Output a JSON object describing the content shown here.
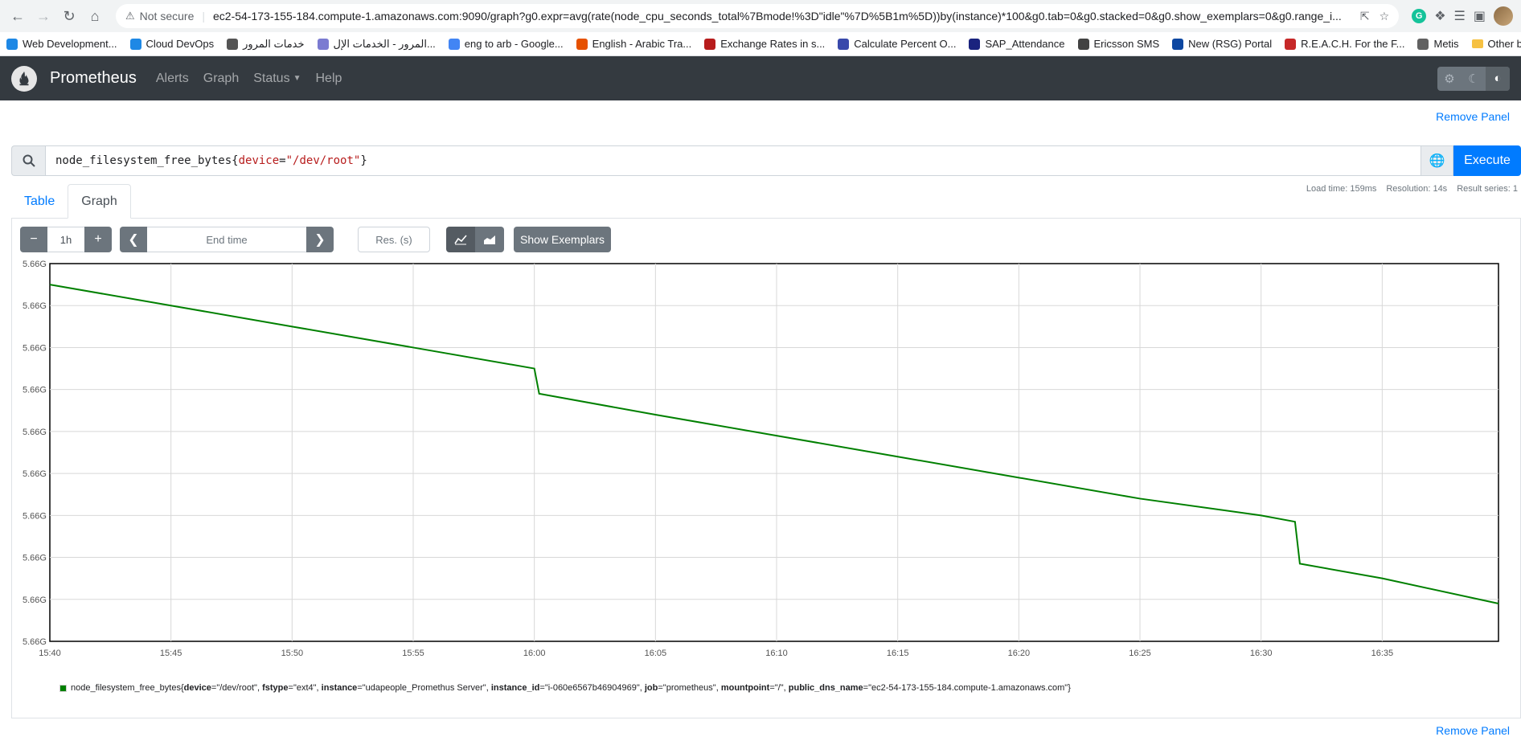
{
  "browser": {
    "security": "Not secure",
    "url": "ec2-54-173-155-184.compute-1.amazonaws.com:9090/graph?g0.expr=avg(rate(node_cpu_seconds_total%7Bmode!%3D\"idle\"%7D%5B1m%5D))by(instance)*100&g0.tab=0&g0.stacked=0&g0.show_exemplars=0&g0.range_i...",
    "bookmarks": [
      {
        "label": "Web Development...",
        "color": "#1e88e5"
      },
      {
        "label": "Cloud DevOps",
        "color": "#1e88e5"
      },
      {
        "label": "خدمات المرور",
        "color": "#555555"
      },
      {
        "label": "المرور - الخدمات الإل...",
        "color": "#7b7bd1"
      },
      {
        "label": "eng to arb - Google...",
        "color": "#4285f4"
      },
      {
        "label": "English - Arabic Tra...",
        "color": "#e65100"
      },
      {
        "label": "Exchange Rates in s...",
        "color": "#b71c1c"
      },
      {
        "label": "Calculate Percent O...",
        "color": "#3949ab"
      },
      {
        "label": "SAP_Attendance",
        "color": "#1a237e"
      },
      {
        "label": "Ericsson SMS",
        "color": "#424242"
      },
      {
        "label": "New (RSG) Portal",
        "color": "#0d47a1"
      },
      {
        "label": "R.E.A.C.H. For the F...",
        "color": "#c62828"
      },
      {
        "label": "Metis",
        "color": "#616161"
      }
    ],
    "other_bookmarks": "Other bookmarks"
  },
  "navbar": {
    "brand": "Prometheus",
    "links": [
      "Alerts",
      "Graph",
      "Status",
      "Help"
    ]
  },
  "panel": {
    "remove_label": "Remove Panel",
    "query_metric": "node_filesystem_free_bytes",
    "query_label_key": "device",
    "query_label_value": "\"/dev/root\"",
    "execute_label": "Execute",
    "stats": {
      "load_time": "Load time: 159ms",
      "resolution": "Resolution: 14s",
      "result_series": "Result series: 1"
    },
    "tabs": [
      "Table",
      "Graph"
    ],
    "controls": {
      "minus": "−",
      "range": "1h",
      "plus": "+",
      "end_time_placeholder": "End time",
      "res_placeholder": "Res. (s)",
      "show_exemplars": "Show Exemplars"
    },
    "legend": {
      "metric": "node_filesystem_free_bytes",
      "labels": [
        {
          "k": "device",
          "v": "\"/dev/root\""
        },
        {
          "k": "fstype",
          "v": "\"ext4\""
        },
        {
          "k": "instance",
          "v": "\"udapeople_Promethus Server\""
        },
        {
          "k": "instance_id",
          "v": "\"i-060e6567b46904969\""
        },
        {
          "k": "job",
          "v": "\"prometheus\""
        },
        {
          "k": "mountpoint",
          "v": "\"/\""
        },
        {
          "k": "public_dns_name",
          "v": "\"ec2-54-173-155-184.compute-1.amazonaws.com\""
        }
      ]
    }
  },
  "chart_data": {
    "type": "line",
    "title": "",
    "xlabel": "",
    "ylabel": "",
    "x_ticks": [
      "15:40",
      "15:45",
      "15:50",
      "15:55",
      "16:00",
      "16:05",
      "16:10",
      "16:15",
      "16:20",
      "16:25",
      "16:30",
      "16:35"
    ],
    "y_ticks": [
      "5.66G",
      "5.66G",
      "5.66G",
      "5.66G",
      "5.66G",
      "5.66G",
      "5.66G",
      "5.66G",
      "5.66G",
      "5.66G"
    ],
    "x_range_minutes": [
      0,
      59.8
    ],
    "y_range": [
      0,
      9
    ],
    "grid": true,
    "series": [
      {
        "name": "node_filesystem_free_bytes{device=\"/dev/root\", fstype=\"ext4\", instance=\"udapeople_Promethus Server\", instance_id=\"i-060e6567b46904969\", job=\"prometheus\", mountpoint=\"/\", public_dns_name=\"ec2-54-173-155-184.compute-1.amazonaws.com\"}",
        "color": "#008000",
        "x_minutes": [
          0,
          5,
          10,
          15,
          20,
          20.2,
          25,
          30,
          35,
          40,
          45,
          50,
          51.4,
          51.6,
          55,
          59.8
        ],
        "values": [
          8.5,
          8.0,
          7.5,
          7.0,
          6.5,
          5.9,
          5.4,
          4.9,
          4.4,
          3.9,
          3.4,
          3.0,
          2.85,
          1.85,
          1.5,
          0.9
        ]
      }
    ]
  }
}
